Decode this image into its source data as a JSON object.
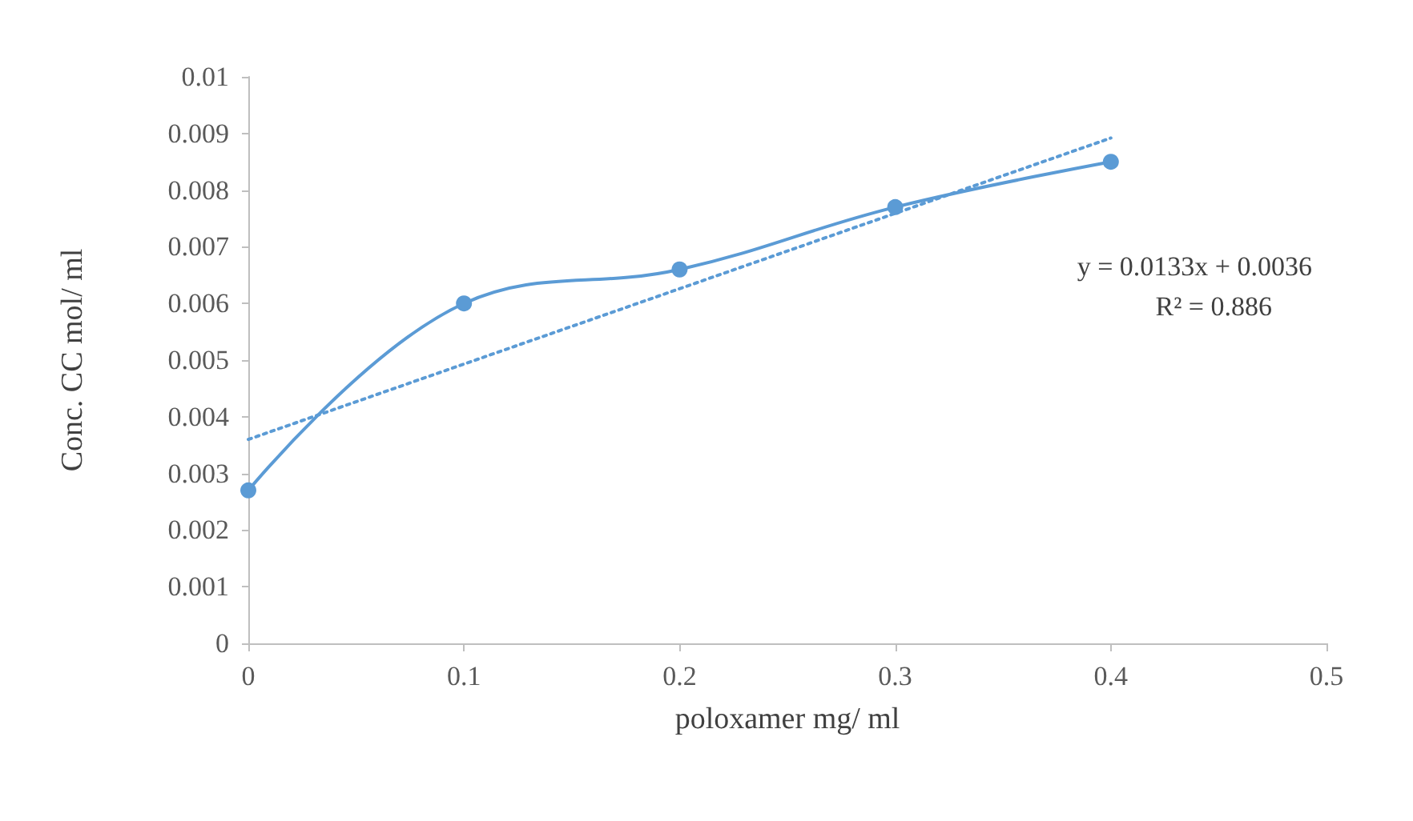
{
  "chart_data": {
    "type": "line",
    "xlabel": "poloxamer mg/ ml",
    "ylabel": "Conc. CC mol/ ml",
    "x": [
      0,
      0.1,
      0.2,
      0.3,
      0.4
    ],
    "series": [
      {
        "color": "#5b9bd5",
        "values": [
          0.0027,
          0.006,
          0.0066,
          0.0077,
          0.0085
        ],
        "line_style": "solid"
      },
      {
        "type": "line",
        "color": "#5b9bd5",
        "x": [
          0,
          0.4
        ],
        "values": [
          0.0036,
          0.00892
        ],
        "marker": "none",
        "line_style": "dotted"
      }
    ],
    "xlim": [
      0,
      0.5
    ],
    "xticks": [
      0,
      0.1,
      0.2,
      0.3,
      0.4,
      0.5
    ],
    "ylim": [
      0,
      0.01
    ],
    "yticks": [
      0,
      0.001,
      0.002,
      0.003,
      0.004,
      0.005,
      0.006,
      0.007,
      0.008,
      0.009,
      0.01
    ],
    "grid": false,
    "marker": "circle",
    "annotations": [
      "y = 0.0133x + 0.0036",
      "R² = 0.886"
    ]
  }
}
